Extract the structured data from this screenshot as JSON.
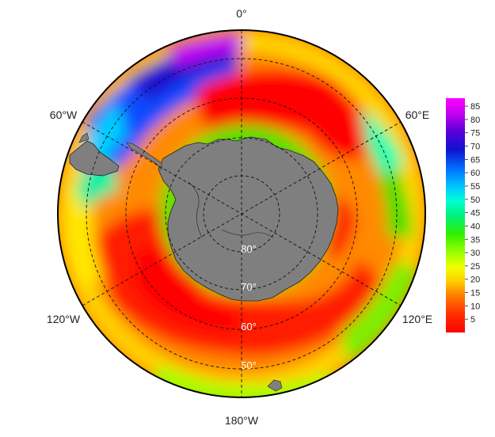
{
  "map": {
    "projection": "south-polar-stereographic",
    "longitude_labels": {
      "top": "0°",
      "upper_left": "60°W",
      "upper_right": "60°E",
      "lower_left": "120°W",
      "lower_right": "120°E",
      "bottom": "180°W"
    },
    "latitude_labels": [
      "80°",
      "70°",
      "60°",
      "50°"
    ],
    "land_color": "#7f7f7f",
    "coastline_color": "#222222",
    "graticule_style": "dashed"
  },
  "colorbar": {
    "ticks": [
      "85",
      "80",
      "75",
      "70",
      "65",
      "60",
      "55",
      "50",
      "45",
      "40",
      "35",
      "30",
      "25",
      "20",
      "15",
      "10",
      "5"
    ],
    "range": [
      0,
      88
    ],
    "colors": [
      "#ff0000",
      "#ff2a00",
      "#ff6600",
      "#ffb000",
      "#ffee00",
      "#c8ff00",
      "#55ff00",
      "#00ee44",
      "#00ffaa",
      "#00e5ff",
      "#00a0ff",
      "#0050ff",
      "#1010d0",
      "#6a00d8",
      "#d000f0",
      "#ff00ff"
    ]
  }
}
